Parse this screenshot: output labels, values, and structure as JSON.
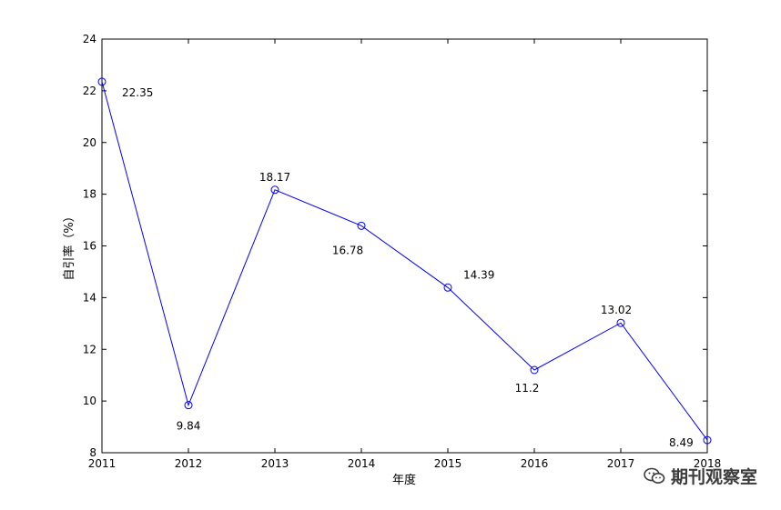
{
  "chart_data": {
    "type": "line",
    "x": [
      "2011",
      "2012",
      "2013",
      "2014",
      "2015",
      "2016",
      "2017",
      "2018"
    ],
    "series": [
      {
        "values": [
          22.35,
          9.84,
          18.17,
          16.78,
          14.39,
          11.2,
          13.02,
          8.49
        ]
      }
    ],
    "data_labels": [
      "22.35",
      "9.84",
      "18.17",
      "16.78",
      "14.39",
      "11.2",
      "13.02",
      "8.49"
    ],
    "xlabel": "年度",
    "ylabel": "自引率（%）",
    "ylim": [
      8,
      24
    ],
    "yticks": [
      8,
      10,
      12,
      14,
      16,
      18,
      20,
      22,
      24
    ],
    "grid": false,
    "marker": "circle",
    "line_color": "#0000ff"
  },
  "watermark": {
    "text": "期刊观察室",
    "icon": "wechat-icon"
  }
}
